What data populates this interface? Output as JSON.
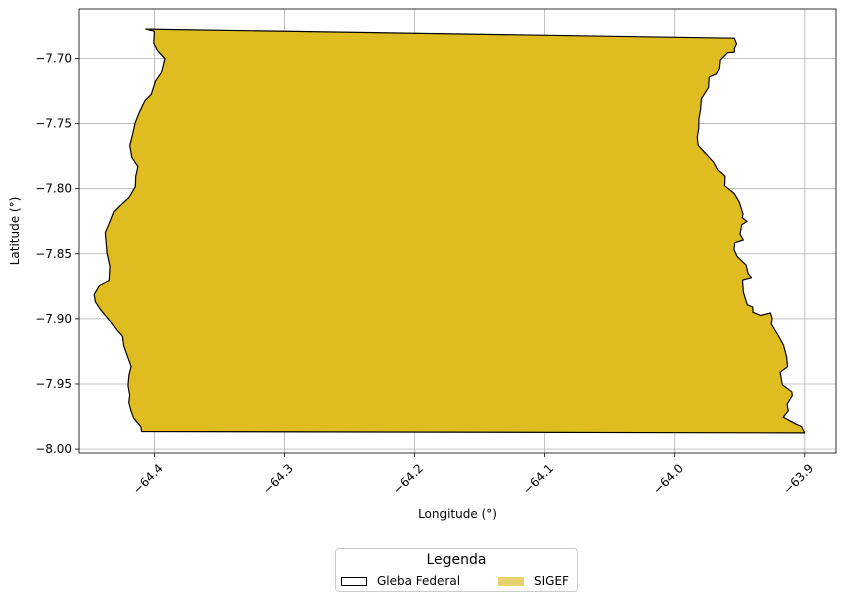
{
  "chart_data": {
    "type": "map",
    "xlabel": "Longitude (°)",
    "ylabel": "Latitude (°)",
    "xlim": [
      -64.458,
      -63.876
    ],
    "ylim": [
      -8.003,
      -7.662
    ],
    "xticks": [
      -64.4,
      -64.3,
      -64.2,
      -64.1,
      -64.0,
      -63.9
    ],
    "xtick_labels": [
      "−64.4",
      "−64.3",
      "−64.2",
      "−64.1",
      "−64.0",
      "−63.9"
    ],
    "yticks": [
      -7.7,
      -7.75,
      -7.8,
      -7.85,
      -7.9,
      -7.95,
      -8.0
    ],
    "ytick_labels": [
      "−7.70",
      "−7.75",
      "−7.80",
      "−7.85",
      "−7.90",
      "−7.95",
      "−8.00"
    ],
    "grid": true,
    "series": [
      {
        "name": "SIGEF",
        "fill": "#dfbc20",
        "polygon": [
          [
            -64.4067,
            -7.6774
          ],
          [
            -63.9543,
            -7.6844
          ],
          [
            -63.9525,
            -7.6888
          ],
          [
            -63.9542,
            -7.6921
          ],
          [
            -63.9542,
            -7.6951
          ],
          [
            -63.9594,
            -7.6956
          ],
          [
            -63.965,
            -7.7011
          ],
          [
            -63.9658,
            -7.7081
          ],
          [
            -63.9678,
            -7.7117
          ],
          [
            -63.9734,
            -7.7142
          ],
          [
            -63.9739,
            -7.7222
          ],
          [
            -63.9795,
            -7.731
          ],
          [
            -63.98,
            -7.739
          ],
          [
            -63.9814,
            -7.7465
          ],
          [
            -63.9815,
            -7.754
          ],
          [
            -63.9826,
            -7.7602
          ],
          [
            -63.982,
            -7.7665
          ],
          [
            -63.9778,
            -7.7712
          ],
          [
            -63.97,
            -7.7795
          ],
          [
            -63.9669,
            -7.7855
          ],
          [
            -63.9614,
            -7.7904
          ],
          [
            -63.9617,
            -7.7977
          ],
          [
            -63.9544,
            -7.8036
          ],
          [
            -63.9505,
            -7.8101
          ],
          [
            -63.9475,
            -7.8195
          ],
          [
            -63.9481,
            -7.8223
          ],
          [
            -63.9444,
            -7.8252
          ],
          [
            -63.9485,
            -7.8277
          ],
          [
            -63.9498,
            -7.835
          ],
          [
            -63.9473,
            -7.8394
          ],
          [
            -63.9538,
            -7.8415
          ],
          [
            -63.9545,
            -7.8466
          ],
          [
            -63.9521,
            -7.852
          ],
          [
            -63.9451,
            -7.8587
          ],
          [
            -63.9435,
            -7.8654
          ],
          [
            -63.941,
            -7.8684
          ],
          [
            -63.9479,
            -7.8703
          ],
          [
            -63.9472,
            -7.8795
          ],
          [
            -63.9442,
            -7.8891
          ],
          [
            -63.94,
            -7.8909
          ],
          [
            -63.9398,
            -7.8949
          ],
          [
            -63.9339,
            -7.8974
          ],
          [
            -63.9264,
            -7.8955
          ],
          [
            -63.9251,
            -7.9001
          ],
          [
            -63.9259,
            -7.9037
          ],
          [
            -63.92,
            -7.9135
          ],
          [
            -63.9164,
            -7.9201
          ],
          [
            -63.9139,
            -7.9295
          ],
          [
            -63.9133,
            -7.9367
          ],
          [
            -63.919,
            -7.941
          ],
          [
            -63.9173,
            -7.9506
          ],
          [
            -63.91,
            -7.956
          ],
          [
            -63.9096,
            -7.9589
          ],
          [
            -63.9137,
            -7.9656
          ],
          [
            -63.9127,
            -7.9705
          ],
          [
            -63.9166,
            -7.9755
          ],
          [
            -63.9066,
            -7.9809
          ],
          [
            -63.9025,
            -7.9826
          ],
          [
            -63.9001,
            -7.9876
          ],
          [
            -64.4098,
            -7.9865
          ],
          [
            -64.4105,
            -7.9828
          ],
          [
            -64.416,
            -7.9763
          ],
          [
            -64.4182,
            -7.9703
          ],
          [
            -64.4198,
            -7.9642
          ],
          [
            -64.4191,
            -7.9586
          ],
          [
            -64.4204,
            -7.9513
          ],
          [
            -64.4197,
            -7.9433
          ],
          [
            -64.418,
            -7.9366
          ],
          [
            -64.4238,
            -7.9205
          ],
          [
            -64.4246,
            -7.9134
          ],
          [
            -64.4289,
            -7.9085
          ],
          [
            -64.4329,
            -7.9029
          ],
          [
            -64.4417,
            -7.8925
          ],
          [
            -64.4454,
            -7.8868
          ],
          [
            -64.4463,
            -7.8812
          ],
          [
            -64.4423,
            -7.8744
          ],
          [
            -64.4347,
            -7.8705
          ],
          [
            -64.4341,
            -7.8597
          ],
          [
            -64.4364,
            -7.849
          ],
          [
            -64.4377,
            -7.8338
          ],
          [
            -64.4339,
            -7.825
          ],
          [
            -64.4311,
            -7.8177
          ],
          [
            -64.4265,
            -7.813
          ],
          [
            -64.4196,
            -7.8068
          ],
          [
            -64.4147,
            -7.7984
          ],
          [
            -64.4144,
            -7.7903
          ],
          [
            -64.4127,
            -7.783
          ],
          [
            -64.4174,
            -7.776
          ],
          [
            -64.419,
            -7.767
          ],
          [
            -64.4167,
            -7.7577
          ],
          [
            -64.4149,
            -7.7494
          ],
          [
            -64.4116,
            -7.7412
          ],
          [
            -64.4073,
            -7.7324
          ],
          [
            -64.4024,
            -7.7275
          ],
          [
            -64.3992,
            -7.7174
          ],
          [
            -64.3944,
            -7.7103
          ],
          [
            -64.3919,
            -7.7002
          ],
          [
            -64.3978,
            -7.6937
          ],
          [
            -64.4005,
            -7.6881
          ],
          [
            -64.4,
            -7.6791
          ]
        ]
      }
    ],
    "legend": {
      "title": "Legenda",
      "position": "bottom-center",
      "entries": [
        {
          "label": "Gleba Federal",
          "style": "outline",
          "color": "#000000"
        },
        {
          "label": "SIGEF",
          "style": "fill",
          "color": "#e6d26e"
        }
      ]
    }
  }
}
